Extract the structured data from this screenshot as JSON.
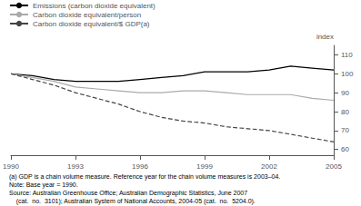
{
  "chart_data": {
    "type": "line",
    "x": [
      1990,
      1991,
      1992,
      1993,
      1994,
      1995,
      1996,
      1997,
      1998,
      1999,
      2000,
      2001,
      2002,
      2003,
      2004,
      2005
    ],
    "series": [
      {
        "name": "Emissions (carbon dioxide equivalent)",
        "color": "#000000",
        "line_style": "solid",
        "values": [
          100,
          99,
          97,
          96,
          96,
          96,
          97,
          98,
          99,
          101,
          101,
          101,
          102,
          104,
          103,
          102
        ]
      },
      {
        "name": "Carbon dioxide equivalent/person",
        "color": "#aaaaaa",
        "line_style": "solid",
        "values": [
          100,
          98,
          96,
          93,
          92,
          91,
          90,
          90,
          91,
          91,
          90,
          89,
          89,
          89,
          87,
          86
        ]
      },
      {
        "name": "Carbon dioxide equivalent/$ GDP(a)",
        "color": "#444444",
        "line_style": "dashed",
        "values": [
          100,
          97,
          94,
          90,
          87,
          84,
          80,
          77,
          75,
          74,
          72,
          71,
          70,
          68,
          66,
          64
        ]
      }
    ],
    "ylabel": "index",
    "xlim": [
      1990,
      2005
    ],
    "xticks": [
      1990,
      1993,
      1996,
      1999,
      2002,
      2005
    ],
    "ylim": [
      57,
      115
    ],
    "yticks": [
      60,
      70,
      80,
      90,
      100,
      110
    ],
    "grid": false,
    "legend": "upper left",
    "annotations": [
      "(a) GDP is a chain volume measure. Reference year for the chain volume measures is 2003–04.",
      "Note: Base year = 1990.",
      "Source: Australian Greenhouse Office; Australian Demographic Statistics, June 2007",
      "    (cat.  no.  3101); Australian System of National Accounts, 2004-05 (cat.  no.  5204.0)."
    ]
  }
}
